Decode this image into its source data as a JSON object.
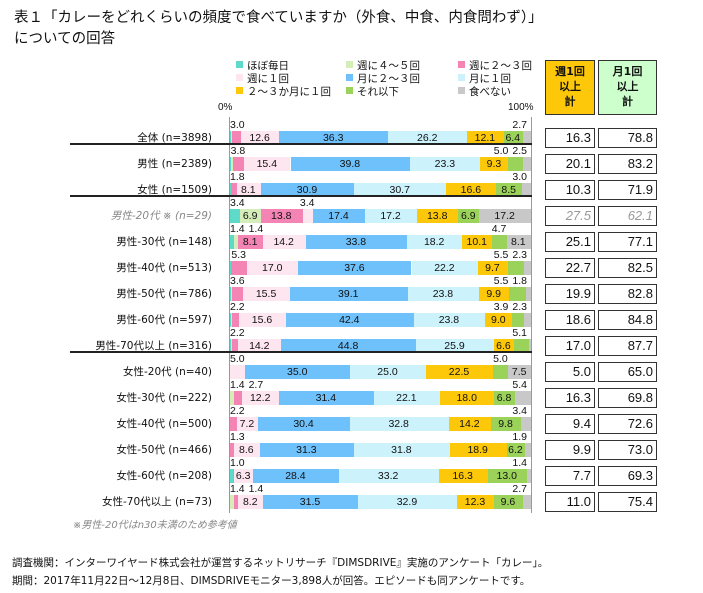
{
  "title_line1": "表１「カレーをどれくらいの頻度で食べていますか（外食、中食、内食問わず）」",
  "title_line2": "についての回答",
  "chart_data": {
    "type": "bar",
    "orientation": "horizontal",
    "stacked": true,
    "xlim": [
      0,
      100
    ],
    "axis_min_label": "0%",
    "axis_max_label": "100%",
    "legend_position": "top",
    "series": [
      {
        "name": "ほぼ毎日",
        "color": "#5fd9c9"
      },
      {
        "name": "週に４～５回",
        "color": "#d4edb9"
      },
      {
        "name": "週に２～３回",
        "color": "#f384b4"
      },
      {
        "name": "週に１回",
        "color": "#fde6ef"
      },
      {
        "name": "月に２～３回",
        "color": "#6ec1fb"
      },
      {
        "name": "月に１回",
        "color": "#ccf2fc"
      },
      {
        "name": "２～３か月に１回",
        "color": "#fdc80a"
      },
      {
        "name": "それ以下",
        "color": "#9bd25a"
      },
      {
        "name": "食べない",
        "color": "#c8c8c8"
      }
    ],
    "rows": [
      {
        "label": "全体 (n=3898)",
        "values": [
          0.3,
          0.4,
          3.0,
          12.6,
          36.3,
          26.2,
          12.1,
          6.4,
          2.7
        ],
        "weekly": "16.3",
        "monthly": "78.8"
      },
      {
        "label": "男性 (n=2389)",
        "values": [
          0.4,
          0.5,
          3.8,
          15.4,
          39.8,
          23.3,
          9.3,
          5.0,
          2.5
        ],
        "weekly": "20.1",
        "monthly": "83.2"
      },
      {
        "label": "女性 (n=1509)",
        "values": [
          0.2,
          0.2,
          1.8,
          8.1,
          30.9,
          30.7,
          16.6,
          8.5,
          3.0
        ],
        "weekly": "10.3",
        "monthly": "71.9"
      },
      {
        "label": "男性-20代 ※ (n=29)",
        "values": [
          3.4,
          6.9,
          13.8,
          3.4,
          17.4,
          17.2,
          13.8,
          6.9,
          17.2
        ],
        "weekly": "27.5",
        "monthly": "62.1",
        "reference": true
      },
      {
        "label": "男性-30代 (n=148)",
        "values": [
          1.4,
          1.4,
          8.1,
          14.2,
          33.8,
          18.2,
          10.1,
          4.7,
          8.1
        ],
        "weekly": "25.1",
        "monthly": "77.1"
      },
      {
        "label": "男性-40代 (n=513)",
        "values": [
          0.2,
          0.2,
          5.3,
          17.0,
          37.6,
          22.2,
          9.7,
          5.5,
          2.3
        ],
        "weekly": "22.7",
        "monthly": "82.5"
      },
      {
        "label": "男性-50代 (n=786)",
        "values": [
          0.4,
          0.4,
          3.6,
          15.5,
          39.1,
          23.8,
          9.9,
          5.5,
          1.8
        ],
        "weekly": "19.9",
        "monthly": "82.8"
      },
      {
        "label": "男性-60代 (n=597)",
        "values": [
          0.4,
          0.4,
          2.2,
          15.6,
          42.4,
          23.8,
          9.0,
          3.9,
          2.3
        ],
        "weekly": "18.6",
        "monthly": "84.8"
      },
      {
        "label": "男性-70代以上 (n=316)",
        "values": [
          0.3,
          0.3,
          2.2,
          14.2,
          44.8,
          25.9,
          6.6,
          5.1,
          0.6
        ],
        "weekly": "17.0",
        "monthly": "87.7"
      },
      {
        "label": "女性-20代 (n=40)",
        "values": [
          0,
          0,
          0,
          5.0,
          35.0,
          25.0,
          22.5,
          5.0,
          7.5
        ],
        "weekly": "5.0",
        "monthly": "65.0"
      },
      {
        "label": "女性-30代 (n=222)",
        "values": [
          0,
          1.4,
          2.7,
          12.2,
          31.4,
          22.1,
          18.0,
          6.8,
          5.4
        ],
        "weekly": "16.3",
        "monthly": "69.8"
      },
      {
        "label": "女性-40代 (n=500)",
        "values": [
          0,
          0,
          2.2,
          7.2,
          30.4,
          32.8,
          14.2,
          9.8,
          3.4
        ],
        "weekly": "9.4",
        "monthly": "72.6"
      },
      {
        "label": "女性-50代 (n=466)",
        "values": [
          0,
          0,
          1.3,
          8.6,
          31.3,
          31.8,
          18.9,
          6.2,
          1.9
        ],
        "weekly": "9.9",
        "monthly": "73.0"
      },
      {
        "label": "女性-60代 (n=208)",
        "values": [
          1.0,
          0,
          0.4,
          6.3,
          28.4,
          33.2,
          16.3,
          13.0,
          1.4
        ],
        "weekly": "7.7",
        "monthly": "69.3"
      },
      {
        "label": "女性-70代以上 (n=73)",
        "values": [
          0,
          1.4,
          1.4,
          8.2,
          31.5,
          32.9,
          12.3,
          9.6,
          2.7
        ],
        "weekly": "11.0",
        "monthly": "75.4"
      }
    ]
  },
  "table_headers": {
    "weekly": [
      "週1回",
      "以上",
      "計"
    ],
    "monthly": [
      "月1回",
      "以上",
      "計"
    ],
    "weekly_color": "#fdc80a",
    "monthly_color": "#ccffcc"
  },
  "note": "※男性-20代はn30未満のため参考値",
  "footer_line1": "調査機関：インターワイヤード株式会社が運営するネットリサーチ『DIMSDRIVE』実施のアンケート「カレー」。",
  "footer_line2": "期間：2017年11月22日～12月8日、DIMSDRIVEモニター3,898人が回答。エピソードも同アンケートです。"
}
